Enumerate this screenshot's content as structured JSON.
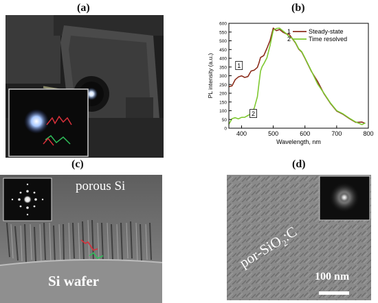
{
  "labels": {
    "a": "(a)",
    "b": "(b)",
    "c": "(c)",
    "d": "(d)"
  },
  "panel_c": {
    "porous_label": "porous Si",
    "wafer_label": "Si wafer"
  },
  "panel_d": {
    "material_prefix": "por-SiO",
    "material_sub": "2",
    "material_suffix": ":C",
    "scalebar": "100 nm"
  },
  "chart_data": {
    "type": "line",
    "xlabel": "Wavelength, nm",
    "ylabel": "PL intensity (a.u.)",
    "xlim": [
      360,
      800
    ],
    "ylim": [
      0,
      600
    ],
    "xticks": [
      400,
      500,
      600,
      700,
      800
    ],
    "yticks": [
      0,
      50,
      100,
      150,
      200,
      250,
      300,
      350,
      400,
      450,
      500,
      550,
      600
    ],
    "legend_position": "top-right",
    "annotations": [
      {
        "text": "1",
        "x": 392,
        "y": 355
      },
      {
        "text": "2",
        "x": 437,
        "y": 80
      }
    ],
    "series": [
      {
        "name": "Steady-state",
        "index": "1",
        "color": "#8b2d1c",
        "x": [
          360,
          370,
          380,
          390,
          400,
          410,
          420,
          430,
          440,
          450,
          455,
          460,
          465,
          470,
          480,
          490,
          500,
          510,
          520,
          530,
          540,
          550,
          560,
          570,
          580,
          590,
          600,
          620,
          640,
          660,
          680,
          700,
          720,
          740,
          760,
          780,
          790
        ],
        "values": [
          230,
          240,
          280,
          300,
          295,
          290,
          300,
          320,
          330,
          350,
          380,
          400,
          410,
          420,
          450,
          500,
          575,
          565,
          560,
          550,
          545,
          530,
          510,
          490,
          460,
          430,
          400,
          330,
          260,
          195,
          145,
          105,
          75,
          55,
          38,
          28,
          25
        ]
      },
      {
        "name": "Time resolved",
        "index": "2",
        "color": "#7ec82f",
        "x": [
          360,
          370,
          380,
          390,
          400,
          410,
          420,
          430,
          440,
          450,
          455,
          460,
          465,
          470,
          480,
          490,
          500,
          510,
          520,
          530,
          540,
          550,
          560,
          570,
          580,
          590,
          600,
          620,
          640,
          660,
          680,
          700,
          720,
          740,
          760,
          780,
          790
        ],
        "values": [
          30,
          50,
          60,
          58,
          55,
          60,
          75,
          90,
          110,
          180,
          260,
          320,
          350,
          370,
          410,
          470,
          560,
          575,
          565,
          555,
          545,
          530,
          510,
          490,
          460,
          430,
          400,
          330,
          260,
          195,
          145,
          105,
          75,
          55,
          38,
          28,
          25
        ]
      }
    ]
  }
}
